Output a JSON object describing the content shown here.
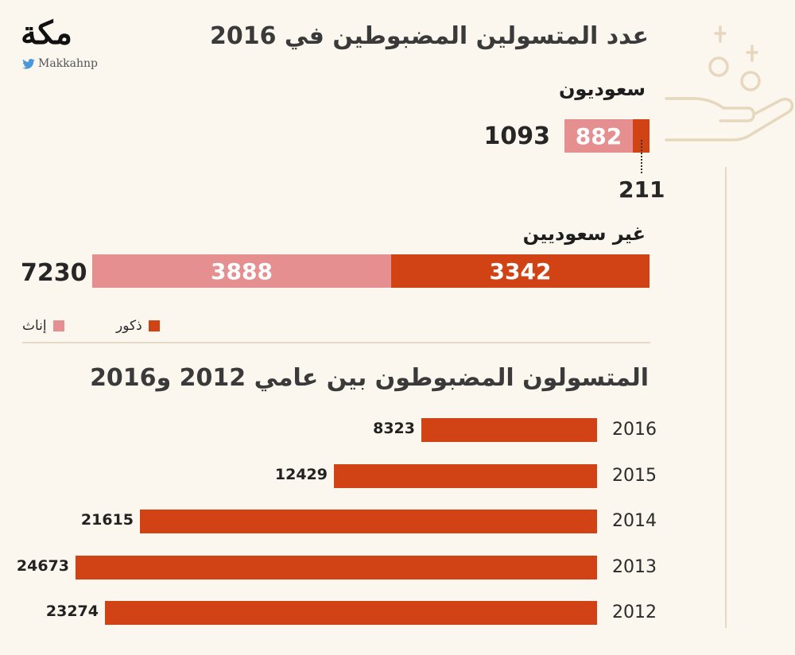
{
  "brand": {
    "logo_text": "مكة",
    "handle": "Makkahnp",
    "twitter_icon": "bird-icon"
  },
  "colors": {
    "male": "#d14315",
    "female": "#e58f90",
    "background": "#fbf6ee"
  },
  "chart_data": [
    {
      "type": "bar",
      "orientation": "horizontal-stacked",
      "title": "عدد المتسولين المضبوطين في 2016",
      "categories": [
        "سعوديون",
        "غير سعوديين"
      ],
      "totals": [
        1093,
        7230
      ],
      "series": [
        {
          "name": "إناث",
          "values": [
            882,
            3888
          ]
        },
        {
          "name": "ذكور",
          "values": [
            211,
            3342
          ]
        }
      ],
      "legend": [
        "ذكور",
        "إناث"
      ]
    },
    {
      "type": "bar",
      "orientation": "horizontal",
      "title": "المتسولون المضبوطون بين عامي 2012 و2016",
      "categories": [
        "2016",
        "2015",
        "2014",
        "2013",
        "2012"
      ],
      "values": [
        8323,
        12429,
        21615,
        24673,
        23274
      ],
      "xlim": [
        0,
        25000
      ]
    }
  ]
}
